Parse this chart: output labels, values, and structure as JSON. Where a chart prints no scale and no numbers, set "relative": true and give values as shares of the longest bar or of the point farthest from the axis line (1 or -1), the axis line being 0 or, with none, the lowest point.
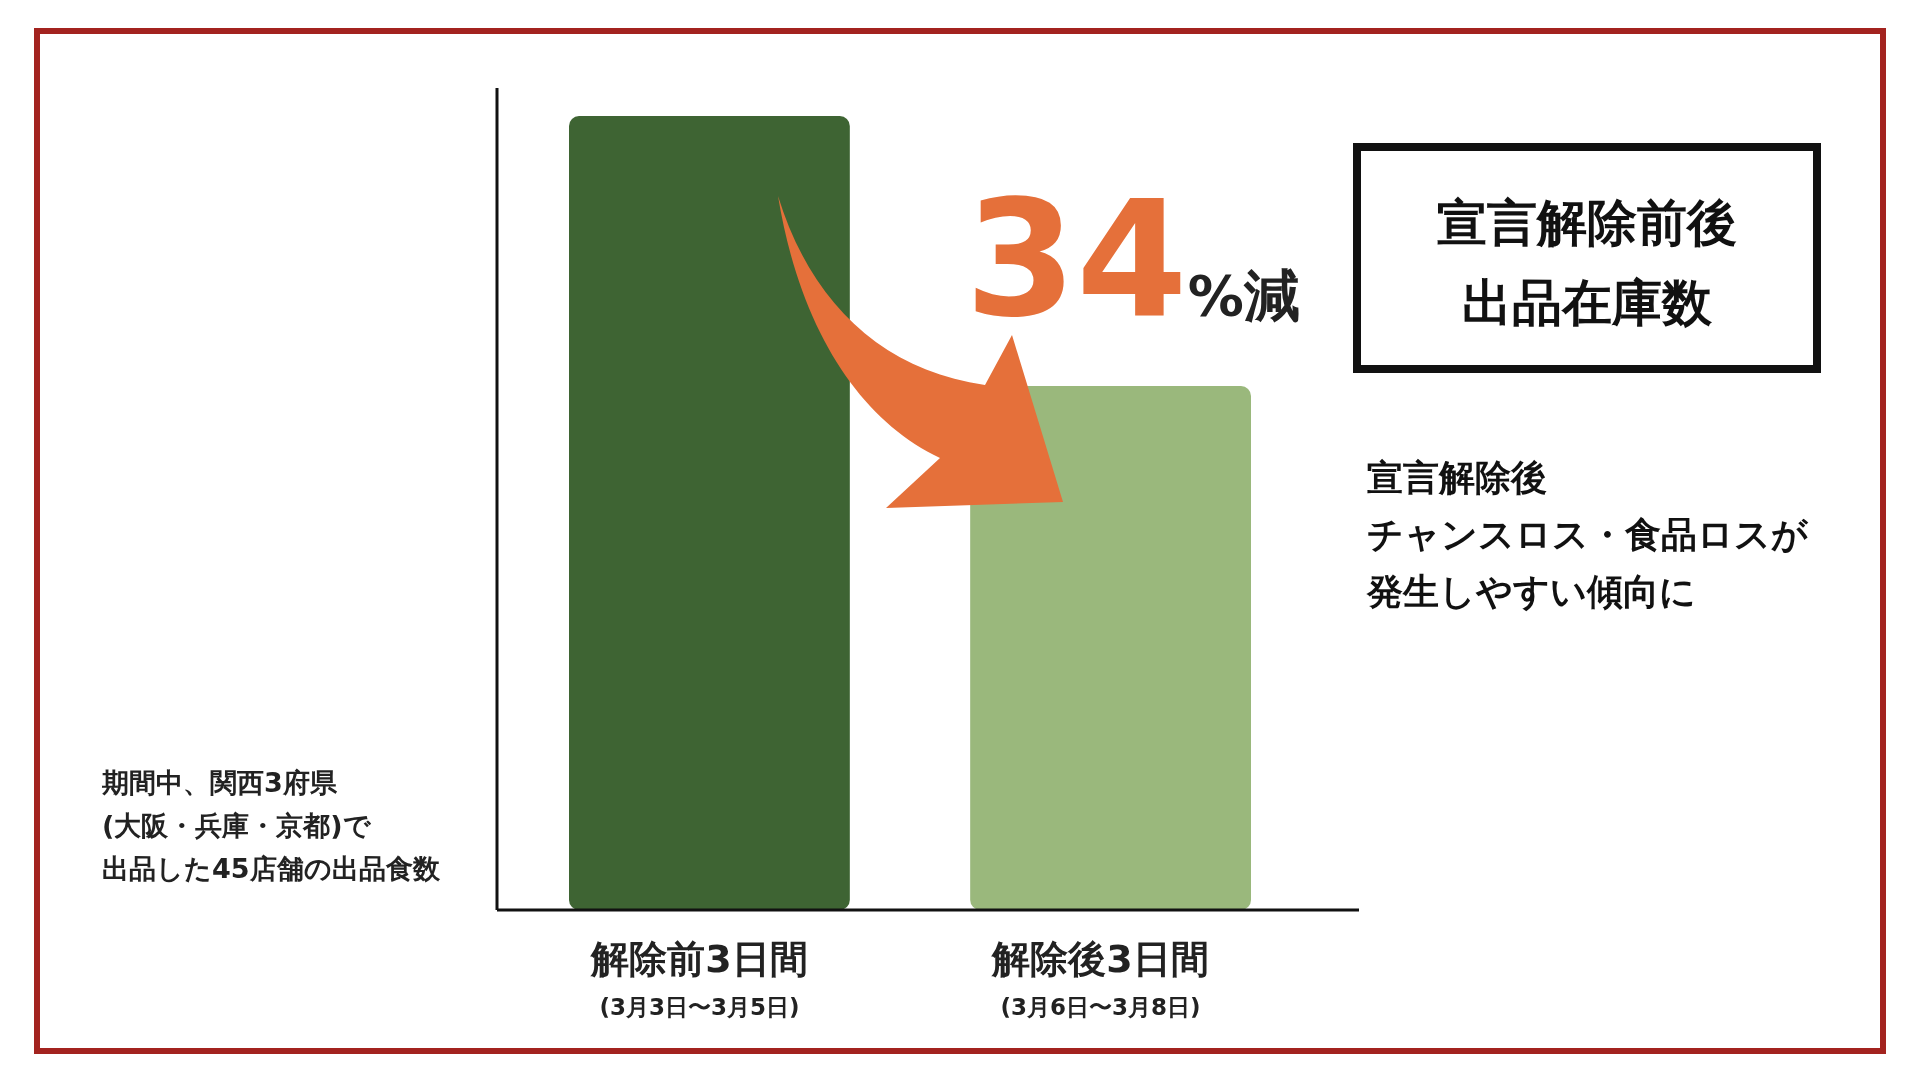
{
  "chart_data": {
    "type": "bar",
    "title": "宣言解除前後出品在庫数",
    "categories": [
      "解除前3日間\n(3月3日〜3月5日)",
      "解除後3日間\n(3月6日〜3月8日)"
    ],
    "values": [
      1,
      0.66
    ],
    "colors": [
      "#3e6433",
      "#9ab87c"
    ],
    "relative": true,
    "annotations": [
      "34%減",
      "宣言解除後",
      "チャンスロス・食品ロスが",
      "発生しやすい傾向に",
      "期間中、関西3府県",
      "(大阪・兵庫・京都)で",
      "出品した45店舗の出品食数"
    ]
  }
}
